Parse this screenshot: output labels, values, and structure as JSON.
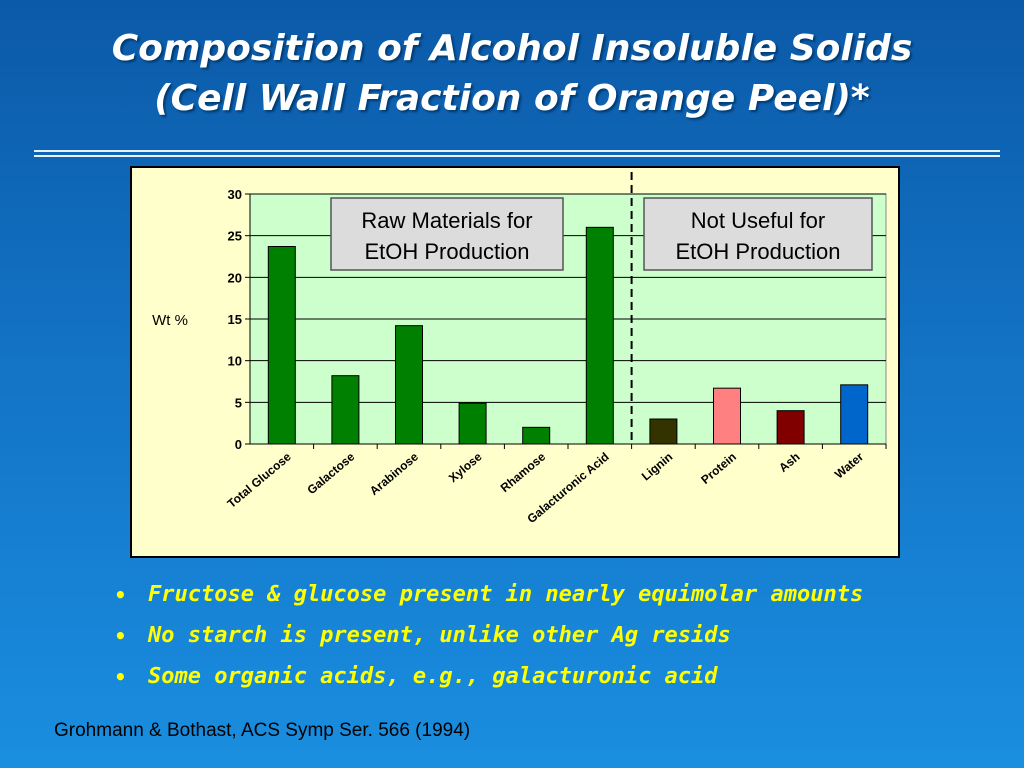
{
  "slide": {
    "title_line1": "Composition of Alcohol Insoluble Solids",
    "title_line2": "(Cell Wall Fraction of Orange Peel)*",
    "bullets": [
      "Fructose & glucose present in nearly equimolar amounts",
      "No starch is present, unlike other Ag resids",
      "Some organic acids, e.g., galacturonic acid"
    ],
    "citation": "Grohmann & Bothast, ACS Symp Ser. 566 (1994)"
  },
  "chart_data": {
    "type": "bar",
    "title": "",
    "xlabel": "",
    "ylabel": "Wt %",
    "ylim": [
      0,
      30
    ],
    "yticks": [
      0,
      5,
      10,
      15,
      20,
      25,
      30
    ],
    "grid": true,
    "categories": [
      "Total Glucose",
      "Galactose",
      "Arabinose",
      "Xylose",
      "Rhamose",
      "Galacturonic Acid",
      "Lignin",
      "Protein",
      "Ash",
      "Water"
    ],
    "values": [
      23.7,
      8.2,
      14.2,
      4.9,
      2.0,
      26.0,
      3.0,
      6.7,
      4.0,
      7.1
    ],
    "colors": [
      "#008000",
      "#008000",
      "#008000",
      "#008000",
      "#008000",
      "#008000",
      "#333300",
      "#ff8080",
      "#800000",
      "#0066cc"
    ],
    "annotations": [
      "Raw Materials for\nEtOH Production",
      "Not Useful for\nEtOH Production"
    ],
    "divider_after": "Galacturonic Acid",
    "plot_bg": "#ccffcc",
    "frame_bg": "#ffffcc"
  }
}
